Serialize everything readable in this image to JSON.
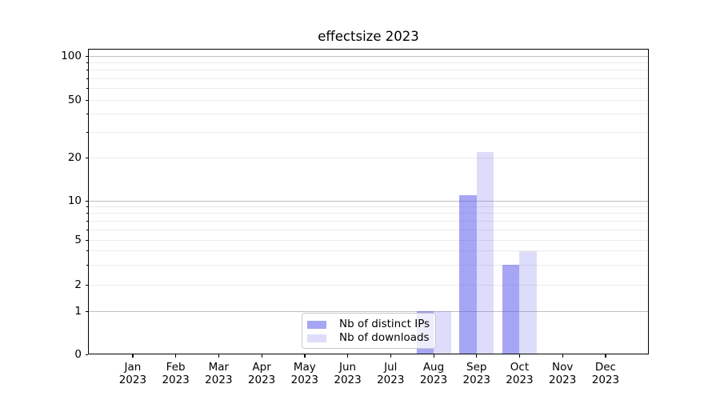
{
  "title": "effectsize 2023",
  "chart_data": {
    "type": "bar",
    "title": "effectsize 2023",
    "categories": [
      "Jan 2023",
      "Feb 2023",
      "Mar 2023",
      "Apr 2023",
      "May 2023",
      "Jun 2023",
      "Jul 2023",
      "Aug 2023",
      "Sep 2023",
      "Oct 2023",
      "Nov 2023",
      "Dec 2023"
    ],
    "series": [
      {
        "name": "Nb of distinct IPs",
        "values": [
          0,
          0,
          0,
          0,
          0,
          0,
          0,
          1,
          11,
          3,
          0,
          0
        ],
        "color": "rgba(73,73,232,0.49)",
        "solid_color": "#a6a6f3"
      },
      {
        "name": "Nb of downloads",
        "values": [
          0,
          0,
          0,
          0,
          0,
          0,
          0,
          1,
          22,
          4,
          0,
          0
        ],
        "color": "rgba(73,73,232,0.19)",
        "solid_color": "#dcdcf9"
      }
    ],
    "xlabel": "",
    "ylabel": "",
    "y_ticks": [
      0,
      1,
      2,
      5,
      10,
      20,
      50,
      100
    ],
    "y_minor_gridlines": [
      2,
      3,
      4,
      5,
      6,
      7,
      8,
      9,
      20,
      30,
      40,
      50,
      60,
      70,
      80,
      90
    ],
    "y_major_gridlines": [
      1,
      10,
      100
    ],
    "yscale": "symlog",
    "ylim": [
      0,
      112
    ],
    "grid": "horizontal",
    "legend_position": "lower center"
  },
  "legend": {
    "items": [
      "Nb of distinct IPs",
      "Nb of downloads"
    ]
  },
  "colors": {
    "background": "#ffffff",
    "bar_ips": "#a6a6f3",
    "bar_downloads": "#dcdcf9",
    "grid_major": "#c0c0c0",
    "grid_minor": "#ebebeb",
    "axis": "#000000"
  }
}
